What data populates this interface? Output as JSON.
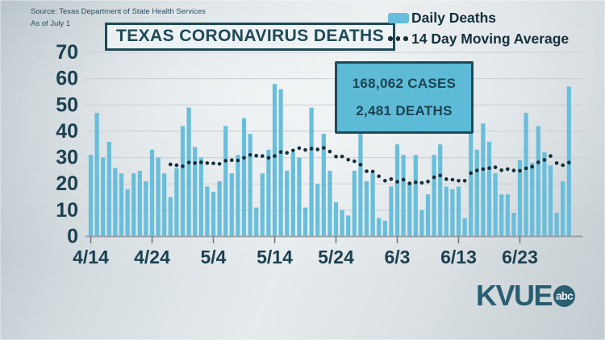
{
  "source": {
    "line1": "Source: Texas Department of State Health Services",
    "line2": "As of July 1"
  },
  "title": "TEXAS CORONAVIRUS DEATHS",
  "legend": {
    "daily": "Daily Deaths",
    "average": "14 Day Moving Average"
  },
  "info_box": {
    "cases": "168,062 CASES",
    "deaths": "2,481 DEATHS"
  },
  "logo": {
    "station": "KVUE",
    "network": "abc"
  },
  "colors": {
    "bar": "#68bedb",
    "dot": "#142e3a",
    "gridline": "#c9cfd2",
    "axis": "#99a1a6",
    "tick": "#6b767c",
    "axis_text": "#1c4150",
    "info_fill": "#5dbbd8",
    "dark_border": "#1e4956",
    "logo": "#2a5d71"
  },
  "chart_data": {
    "type": "bar",
    "title": "TEXAS CORONAVIRUS DEATHS",
    "xlabel": "",
    "ylabel": "",
    "ylim": [
      0,
      70
    ],
    "y_ticks": [
      0,
      10,
      20,
      30,
      40,
      50,
      60,
      70
    ],
    "grid": true,
    "legend_position": "top-right",
    "x_tick_labels": [
      "4/14",
      "4/24",
      "5/4",
      "5/14",
      "5/24",
      "6/3",
      "6/13",
      "6/23"
    ],
    "x_tick_indices": [
      0,
      10,
      20,
      30,
      40,
      50,
      60,
      70
    ],
    "dates": [
      "4/14",
      "4/15",
      "4/16",
      "4/17",
      "4/18",
      "4/19",
      "4/20",
      "4/21",
      "4/22",
      "4/23",
      "4/24",
      "4/25",
      "4/26",
      "4/27",
      "4/28",
      "4/29",
      "4/30",
      "5/1",
      "5/2",
      "5/3",
      "5/4",
      "5/5",
      "5/6",
      "5/7",
      "5/8",
      "5/9",
      "5/10",
      "5/11",
      "5/12",
      "5/13",
      "5/14",
      "5/15",
      "5/16",
      "5/17",
      "5/18",
      "5/19",
      "5/20",
      "5/21",
      "5/22",
      "5/23",
      "5/24",
      "5/25",
      "5/26",
      "5/27",
      "5/28",
      "5/29",
      "5/30",
      "5/31",
      "6/1",
      "6/2",
      "6/3",
      "6/4",
      "6/5",
      "6/6",
      "6/7",
      "6/8",
      "6/9",
      "6/10",
      "6/11",
      "6/12",
      "6/13",
      "6/14",
      "6/15",
      "6/16",
      "6/17",
      "6/18",
      "6/19",
      "6/20",
      "6/21",
      "6/22",
      "6/23",
      "6/24",
      "6/25",
      "6/26",
      "6/27",
      "6/28",
      "6/29",
      "6/30",
      "7/1"
    ],
    "series": [
      {
        "name": "Daily Deaths",
        "type": "bar",
        "values": [
          31,
          47,
          30,
          36,
          26,
          24,
          18,
          24,
          25,
          21,
          33,
          30,
          24,
          15,
          26,
          42,
          49,
          34,
          30,
          19,
          17,
          21,
          42,
          24,
          31,
          45,
          39,
          11,
          24,
          33,
          58,
          56,
          25,
          32,
          30,
          11,
          49,
          20,
          39,
          25,
          13,
          10,
          8,
          25,
          39,
          21,
          24,
          7,
          6,
          19,
          35,
          31,
          20,
          31,
          10,
          16,
          31,
          35,
          19,
          18,
          19,
          7,
          46,
          33,
          43,
          36,
          24,
          16,
          16,
          9,
          29,
          47,
          28,
          42,
          32,
          27,
          9,
          21,
          57
        ]
      },
      {
        "name": "14 Day Moving Average",
        "type": "dotted-line",
        "window": 14,
        "values": [
          null,
          null,
          null,
          null,
          null,
          null,
          null,
          null,
          null,
          null,
          null,
          null,
          null,
          27.4,
          27.1,
          26.7,
          28.1,
          27.9,
          28.2,
          27.9,
          27.8,
          27.6,
          28.8,
          29.0,
          28.9,
          29.9,
          31.0,
          30.7,
          30.6,
          29.9,
          30.6,
          32.1,
          31.8,
          32.7,
          33.6,
          32.9,
          33.4,
          33.1,
          33.7,
          32.3,
          30.4,
          30.4,
          29.2,
          28.6,
          27.3,
          24.8,
          24.7,
          22.9,
          21.2,
          21.8,
          20.8,
          21.6,
          20.2,
          20.6,
          20.4,
          20.9,
          22.5,
          23.2,
          21.8,
          21.6,
          21.2,
          21.2,
          24.1,
          25.1,
          25.6,
          26.0,
          26.3,
          25.2,
          25.6,
          25.1,
          25.0,
          25.9,
          26.5,
          28.2,
          29.1,
          30.6,
          27.9,
          27.1,
          28.1
        ]
      }
    ]
  }
}
